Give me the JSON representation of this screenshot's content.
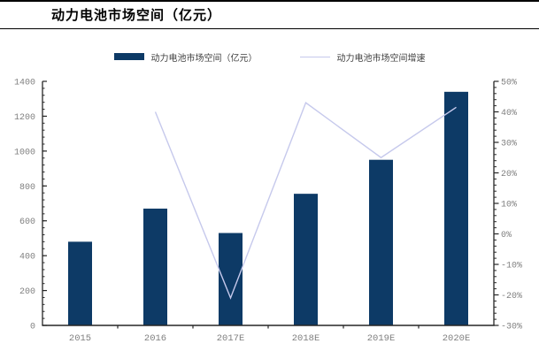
{
  "header": {
    "title": "动力电池市场空间（亿元）"
  },
  "legend": {
    "bar_label": "动力电池市场空间（亿元）",
    "line_label": "动力电池市场空间增速"
  },
  "chart_data": {
    "type": "bar+line combo",
    "title": "动力电池市场空间（亿元）",
    "categories": [
      "2015",
      "2016",
      "2017E",
      "2018E",
      "2019E",
      "2020E"
    ],
    "series": [
      {
        "name": "动力电池市场空间（亿元）",
        "type": "bar",
        "axis": "left",
        "color": "#0d3a66",
        "values": [
          480,
          670,
          530,
          755,
          950,
          1340
        ]
      },
      {
        "name": "动力电池市场空间增速",
        "type": "line",
        "axis": "right",
        "color": "#c6c9ec",
        "values": [
          null,
          40,
          -21,
          43,
          25,
          41.5
        ]
      }
    ],
    "left_axis": {
      "min": 0,
      "max": 1400,
      "major_step": 200,
      "minor_step": 40,
      "tick_labels": [
        "0",
        "200",
        "400",
        "600",
        "800",
        "1000",
        "1200",
        "1400"
      ]
    },
    "right_axis": {
      "min": -30,
      "max": 50,
      "major_step": 10,
      "minor_step": 2,
      "tick_labels": [
        "-30%",
        "-20%",
        "-10%",
        "0%",
        "10%",
        "20%",
        "30%",
        "40%",
        "50%"
      ]
    },
    "grid": false,
    "legend_position": "top-center",
    "colors": {
      "bar": "#0d3a66",
      "line": "#c6c9ec",
      "axis": "#262626",
      "tick_label": "#7f7f7f"
    }
  }
}
